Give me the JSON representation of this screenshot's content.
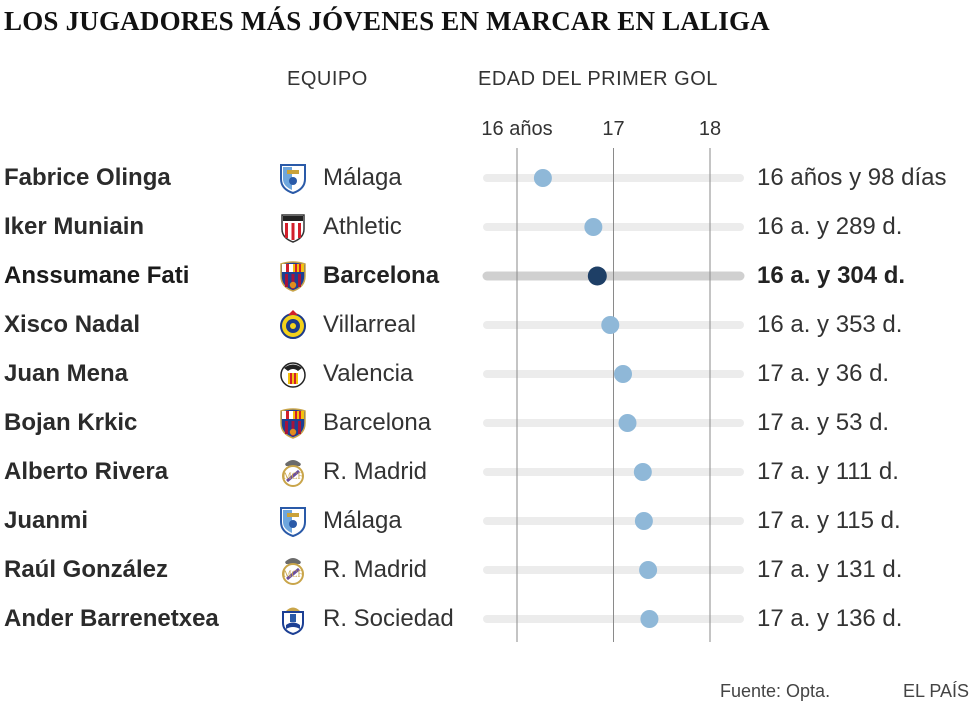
{
  "title": "LOS JUGADORES MÁS JÓVENES EN MARCAR EN LALIGA",
  "headers": {
    "team": "EQUIPO",
    "age": "EDAD DEL PRIMER GOL"
  },
  "source": "Fuente: Opta.",
  "publisher": "EL PAÍS",
  "chart_data": {
    "type": "scatter",
    "title": "LOS JUGADORES MÁS JÓVENES EN MARCAR EN LALIGA",
    "xlabel": "EDAD DEL PRIMER GOL",
    "xlim": [
      16,
      18
    ],
    "xticks": [
      {
        "value": 16,
        "label": "16 años"
      },
      {
        "value": 17,
        "label": "17"
      },
      {
        "value": 18,
        "label": "18"
      }
    ],
    "grid": true,
    "highlight_color": "#1e3f66",
    "dot_color": "#8fb8d8",
    "track_color": "#ececec",
    "points": [
      {
        "player": "Fabrice Olinga",
        "team": "Málaga",
        "crest": "malaga-crest",
        "years": 16,
        "days": 98,
        "label": "16 años y 98 días",
        "highlight": false
      },
      {
        "player": "Iker Muniain",
        "team": "Athletic",
        "crest": "athletic-crest",
        "years": 16,
        "days": 289,
        "label": "16 a. y 289 d.",
        "highlight": false
      },
      {
        "player": "Anssumane Fati",
        "team": "Barcelona",
        "crest": "barcelona-crest",
        "years": 16,
        "days": 304,
        "label": "16 a. y 304 d.",
        "highlight": true
      },
      {
        "player": "Xisco Nadal",
        "team": "Villarreal",
        "crest": "villarreal-crest",
        "years": 16,
        "days": 353,
        "label": "16 a. y 353 d.",
        "highlight": false
      },
      {
        "player": "Juan Mena",
        "team": "Valencia",
        "crest": "valencia-crest",
        "years": 17,
        "days": 36,
        "label": "17 a. y 36 d.",
        "highlight": false
      },
      {
        "player": "Bojan Krkic",
        "team": "Barcelona",
        "crest": "barcelona-crest",
        "years": 17,
        "days": 53,
        "label": "17 a. y 53 d.",
        "highlight": false
      },
      {
        "player": "Alberto Rivera",
        "team": "R. Madrid",
        "crest": "real-madrid-crest",
        "years": 17,
        "days": 111,
        "label": "17 a. y 111 d.",
        "highlight": false
      },
      {
        "player": "Juanmi",
        "team": "Málaga",
        "crest": "malaga-crest",
        "years": 17,
        "days": 115,
        "label": "17 a. y 115 d.",
        "highlight": false
      },
      {
        "player": "Raúl González",
        "team": "R. Madrid",
        "crest": "real-madrid-crest",
        "years": 17,
        "days": 131,
        "label": "17 a. y 131 d.",
        "highlight": false
      },
      {
        "player": "Ander Barrenetxea",
        "team": "R. Sociedad",
        "crest": "real-sociedad-crest",
        "years": 17,
        "days": 136,
        "label": "17 a. y 136 d.",
        "highlight": false
      }
    ]
  }
}
